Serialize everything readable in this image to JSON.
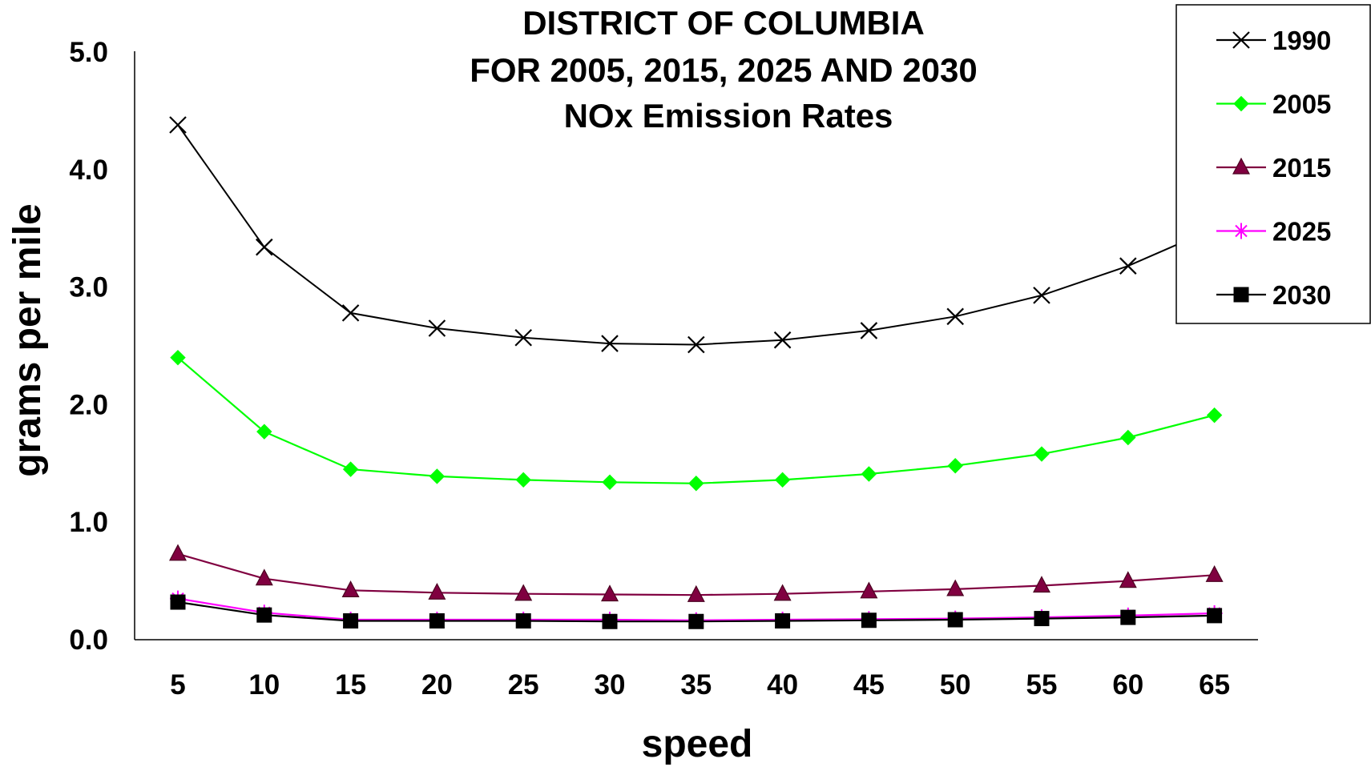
{
  "chart_data": {
    "type": "line",
    "title": [
      "DISTRICT OF COLUMBIA",
      "FOR  2005, 2015, 2025 AND 2030",
      "NOx Emission Rates"
    ],
    "xlabel": "speed",
    "ylabel": "grams per mile",
    "x": [
      5,
      10,
      15,
      20,
      25,
      30,
      35,
      40,
      45,
      50,
      55,
      60,
      65
    ],
    "x_tick_labels": [
      "5",
      "10",
      "15",
      "20",
      "25",
      "30",
      "35",
      "40",
      "45",
      "50",
      "55",
      "60",
      "65"
    ],
    "ylim": [
      0,
      5
    ],
    "y_ticks": [
      0,
      1,
      2,
      3,
      4,
      5
    ],
    "y_tick_labels": [
      "0.0",
      "1.0",
      "2.0",
      "3.0",
      "4.0",
      "5.0"
    ],
    "grid": false,
    "legend_position": "top-right",
    "series": [
      {
        "name": "1990",
        "color": "#000000",
        "marker": "x",
        "values": [
          4.38,
          3.34,
          2.78,
          2.65,
          2.57,
          2.52,
          2.51,
          2.55,
          2.63,
          2.75,
          2.93,
          3.18,
          3.5
        ]
      },
      {
        "name": "2005",
        "color": "#00ff00",
        "marker": "diamond",
        "values": [
          2.4,
          1.77,
          1.45,
          1.39,
          1.36,
          1.34,
          1.33,
          1.36,
          1.41,
          1.48,
          1.58,
          1.72,
          1.91
        ]
      },
      {
        "name": "2015",
        "color": "#800040",
        "marker": "triangle",
        "values": [
          0.73,
          0.52,
          0.42,
          0.4,
          0.39,
          0.385,
          0.38,
          0.39,
          0.41,
          0.43,
          0.46,
          0.5,
          0.55
        ]
      },
      {
        "name": "2025",
        "color": "#ff00ff",
        "marker": "asterisk",
        "values": [
          0.35,
          0.23,
          0.17,
          0.17,
          0.17,
          0.17,
          0.165,
          0.17,
          0.175,
          0.18,
          0.19,
          0.205,
          0.225
        ]
      },
      {
        "name": "2030",
        "color": "#000000",
        "marker": "square",
        "values": [
          0.32,
          0.21,
          0.16,
          0.16,
          0.16,
          0.155,
          0.155,
          0.16,
          0.165,
          0.17,
          0.18,
          0.19,
          0.205
        ]
      }
    ]
  }
}
